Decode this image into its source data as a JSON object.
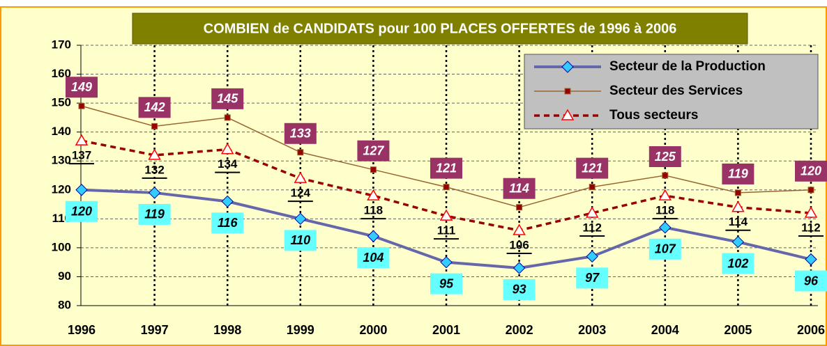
{
  "chart_data": {
    "type": "line",
    "title": "COMBIEN de CANDIDATS pour 100 PLACES OFFERTES de 1996 à 2006",
    "categories": [
      "1996",
      "1997",
      "1998",
      "1999",
      "2000",
      "2001",
      "2002",
      "2003",
      "2004",
      "2005",
      "2006"
    ],
    "series": [
      {
        "name": "Secteur de la Production",
        "color": "#6666aa",
        "values": [
          120,
          119,
          116,
          110,
          104,
          95,
          93,
          97,
          107,
          102,
          96
        ]
      },
      {
        "name": "Secteur des Services",
        "color": "#996633",
        "values": [
          149,
          142,
          145,
          133,
          127,
          121,
          114,
          121,
          125,
          119,
          120
        ]
      },
      {
        "name": "Tous secteurs",
        "color": "#990000",
        "values": [
          137,
          132,
          134,
          124,
          118,
          111,
          106,
          112,
          118,
          114,
          112
        ]
      }
    ],
    "ylim": [
      80,
      170
    ],
    "yticks": [
      80,
      90,
      100,
      110,
      120,
      130,
      140,
      150,
      160,
      170
    ],
    "grid": true,
    "legend": "upper right"
  }
}
